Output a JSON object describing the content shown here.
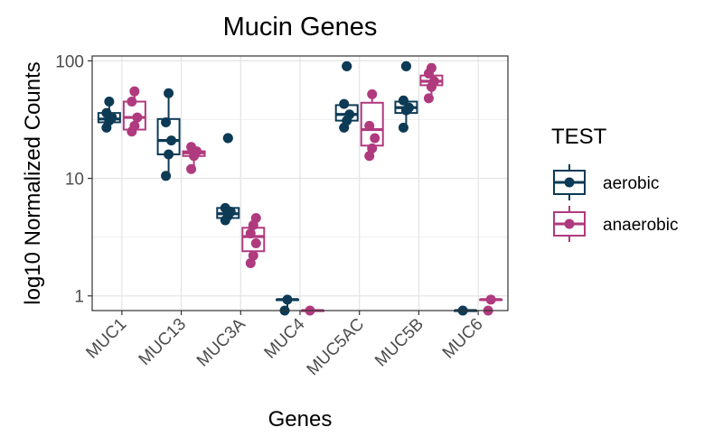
{
  "chart_data": {
    "type": "boxplot",
    "title": "Mucin Genes",
    "xlabel": "Genes",
    "ylabel": "log10 Normalized Counts",
    "yscale": "log10",
    "ylim": [
      0.75,
      110
    ],
    "yticks": [
      1,
      10,
      100
    ],
    "ytick_labels": [
      "1",
      "10",
      "100"
    ],
    "grid": true,
    "legend": {
      "title": "TEST",
      "position": "right"
    },
    "categories": [
      "MUC1",
      "MUC13",
      "MUC3A",
      "MUC4",
      "MUC5AC",
      "MUC5B",
      "MUC6"
    ],
    "series": [
      {
        "name": "aerobic",
        "color": "#0d3a55",
        "boxes": [
          {
            "min": 27,
            "q1": 30,
            "median": 32,
            "q3": 36,
            "max": 45,
            "points": [
              27,
              31,
              33,
              36,
              45
            ]
          },
          {
            "min": 10.5,
            "q1": 16,
            "median": 21,
            "q3": 32,
            "max": 53,
            "points": [
              10.5,
              16,
              21,
              30,
              53
            ]
          },
          {
            "min": 4.4,
            "q1": 4.6,
            "median": 5,
            "q3": 5.6,
            "max": 5.8,
            "outliers": [
              22
            ],
            "points": [
              4.4,
              4.8,
              5.2,
              5.6,
              22
            ]
          },
          {
            "min": 0.75,
            "q1": 0.93,
            "median": 0.93,
            "q3": 0.93,
            "max": 0.93,
            "points": [
              0.75,
              0.93
            ]
          },
          {
            "min": 27,
            "q1": 31,
            "median": 35,
            "q3": 42,
            "max": 43,
            "outliers": [
              90
            ],
            "points": [
              27,
              31,
              35,
              43,
              90
            ]
          },
          {
            "min": 27,
            "q1": 36,
            "median": 40,
            "q3": 45,
            "max": 46,
            "outliers": [
              90
            ],
            "points": [
              27,
              38,
              40,
              46,
              90
            ]
          },
          {
            "min": 0.75,
            "q1": 0.75,
            "median": 0.75,
            "q3": 0.75,
            "max": 0.75,
            "points": [
              0.75
            ]
          }
        ]
      },
      {
        "name": "anaerobic",
        "color": "#b03a7e",
        "boxes": [
          {
            "min": 25,
            "q1": 26,
            "median": 33,
            "q3": 45,
            "max": 55,
            "points": [
              25,
              28,
              33,
              45,
              55
            ]
          },
          {
            "min": 12,
            "q1": 15.5,
            "median": 16.5,
            "q3": 17,
            "max": 18.5,
            "points": [
              12,
              15.5,
              17,
              18.5
            ]
          },
          {
            "min": 1.9,
            "q1": 2.4,
            "median": 3.2,
            "q3": 3.8,
            "max": 4.6,
            "points": [
              1.9,
              2.2,
              2.8,
              3.4,
              4,
              4.6
            ]
          },
          {
            "min": 0.75,
            "q1": 0.75,
            "median": 0.75,
            "q3": 0.75,
            "max": 0.75,
            "points": [
              0.75
            ]
          },
          {
            "min": 15.5,
            "q1": 19,
            "median": 26,
            "q3": 44,
            "max": 52,
            "points": [
              15.5,
              18,
              22,
              28,
              52
            ]
          },
          {
            "min": 48,
            "q1": 62,
            "median": 67,
            "q3": 75,
            "max": 87,
            "points": [
              48,
              60,
              67,
              78,
              87
            ]
          },
          {
            "min": 0.93,
            "q1": 0.93,
            "median": 0.93,
            "q3": 0.93,
            "max": 0.93,
            "points": [
              0.75,
              0.93
            ]
          }
        ]
      }
    ]
  }
}
